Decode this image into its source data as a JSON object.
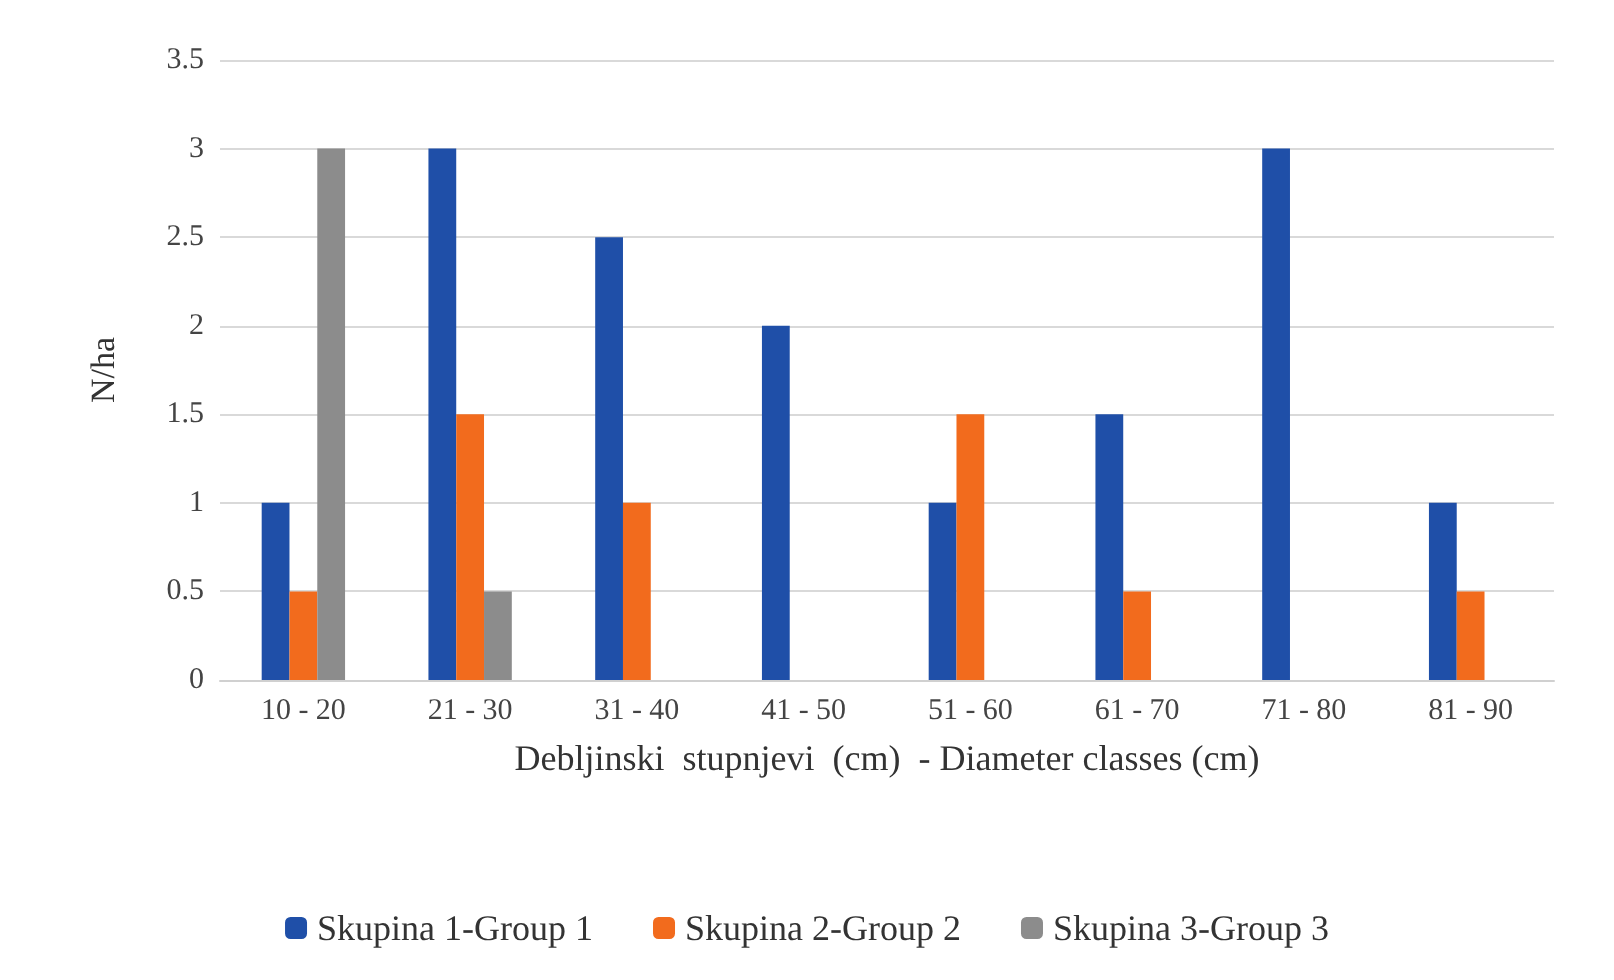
{
  "chart_data": {
    "type": "bar",
    "xlabel": "Debljinski  stupnjevi  (cm)  - Diameter classes (cm)",
    "ylabel": "N/ha",
    "categories": [
      "10 - 20",
      "21 - 30",
      "31 - 40",
      "41 - 50",
      "51 - 60",
      "61 - 70",
      "71 - 80",
      "81 - 90"
    ],
    "series": [
      {
        "name": "Skupina 1-Group 1",
        "color": "#1f4fa8",
        "values": [
          1,
          3,
          2.5,
          2,
          1,
          1.5,
          3,
          1
        ]
      },
      {
        "name": "Skupina 2-Group 2",
        "color": "#f26b1d",
        "values": [
          0.5,
          1.5,
          1,
          null,
          1.5,
          0.5,
          null,
          0.5
        ]
      },
      {
        "name": "Skupina 3-Group 3",
        "color": "#8c8c8c",
        "values": [
          3,
          0.5,
          null,
          null,
          null,
          null,
          null,
          null
        ]
      }
    ],
    "ylim": [
      0,
      3.5
    ],
    "yticks": [
      0,
      0.5,
      1,
      1.5,
      2,
      2.5,
      3,
      3.5
    ],
    "grid": "y",
    "legend": "bottom"
  }
}
